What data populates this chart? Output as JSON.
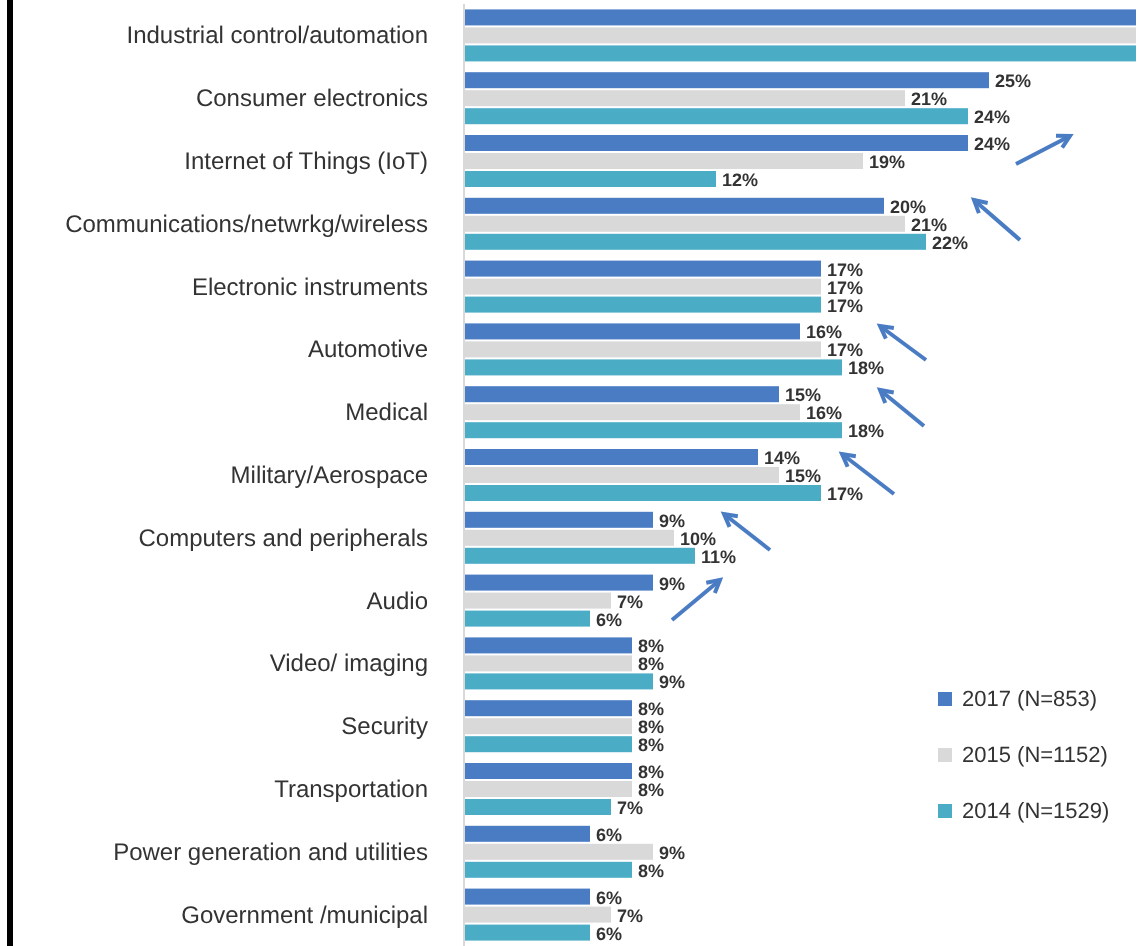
{
  "chart_data": {
    "type": "bar",
    "orientation": "horizontal",
    "categories": [
      "Industrial control/automation",
      "Consumer electronics",
      "Internet of Things (IoT)",
      "Communications/netwrkg/wireless",
      "Electronic instruments",
      "Automotive",
      "Medical",
      "Military/Aerospace",
      "Computers and peripherals",
      "Audio",
      "Video/ imaging",
      "Security",
      "Transportation",
      "Power generation and utilities",
      "Government /municipal"
    ],
    "series": [
      {
        "name": "2017 (N=853)",
        "color": "#4a7cc4",
        "values": [
          32,
          25,
          24,
          20,
          17,
          16,
          15,
          14,
          9,
          9,
          8,
          8,
          8,
          6,
          6
        ],
        "value_labels": [
          null,
          "25%",
          "24%",
          "20%",
          "17%",
          "16%",
          "15%",
          "14%",
          "9%",
          "9%",
          "8%",
          "8%",
          "8%",
          "6%",
          "6%"
        ]
      },
      {
        "name": "2015 (N=1152)",
        "color": "#d9d9d9",
        "values": [
          32,
          21,
          19,
          21,
          17,
          17,
          16,
          15,
          10,
          7,
          8,
          8,
          8,
          9,
          7
        ],
        "value_labels": [
          null,
          "21%",
          "19%",
          "21%",
          "17%",
          "17%",
          "16%",
          "15%",
          "10%",
          "7%",
          "8%",
          "8%",
          "8%",
          "9%",
          "7%"
        ]
      },
      {
        "name": "2014 (N=1529)",
        "color": "#4bacc6",
        "values": [
          32,
          24,
          12,
          22,
          17,
          18,
          18,
          17,
          11,
          6,
          9,
          8,
          7,
          8,
          6
        ],
        "value_labels": [
          null,
          "24%",
          "12%",
          "22%",
          "17%",
          "18%",
          "18%",
          "17%",
          "11%",
          "6%",
          "9%",
          "8%",
          "7%",
          "8%",
          "6%"
        ]
      }
    ],
    "xlim": [
      0,
      32
    ],
    "tick_labels": "y",
    "legend": "right"
  }
}
